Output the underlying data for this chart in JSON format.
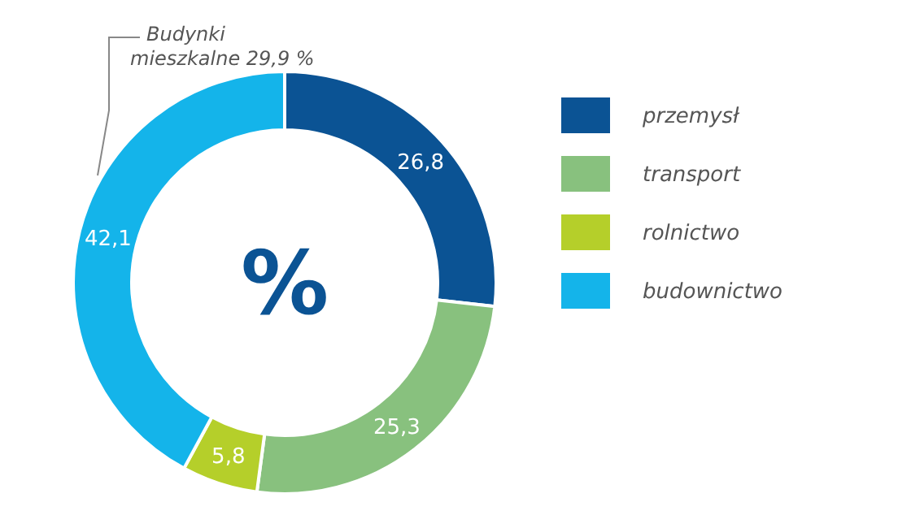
{
  "chart_data": {
    "type": "donut",
    "categories": [
      "przemysł",
      "transport",
      "rolnictwo",
      "budownictwo"
    ],
    "values": [
      26.8,
      25.3,
      5.8,
      42.1
    ],
    "colors": [
      "#0b5394",
      "#88c17e",
      "#b5cf2a",
      "#14b4ea"
    ],
    "value_labels": [
      "26,8",
      "25,3",
      "5,8",
      "42,1"
    ],
    "legend": "right",
    "annotations": [
      "%",
      "Budynki\nmieszkalne 29,9 %"
    ]
  }
}
